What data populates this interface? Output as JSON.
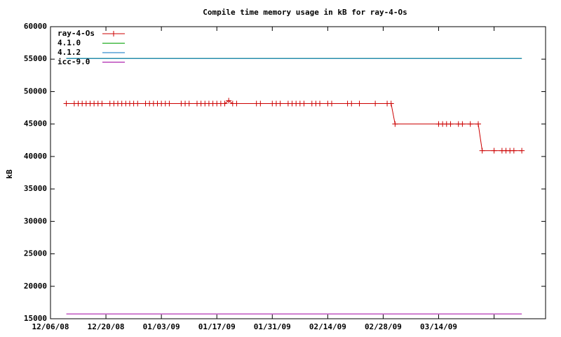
{
  "chart_data": {
    "type": "line",
    "title": "Compile time memory usage in kB for ray-4-Os",
    "ylabel": "kB",
    "xlim": [
      "12/06/08",
      "04/10/09"
    ],
    "xticks": [
      "12/06/08",
      "12/20/08",
      "01/03/09",
      "01/17/09",
      "01/31/09",
      "02/14/09",
      "02/28/09",
      "03/14/09",
      {
        "value": "03/28/09",
        "label": null
      }
    ],
    "ylim": [
      15000,
      60000
    ],
    "yticks": [
      15000,
      20000,
      25000,
      30000,
      35000,
      40000,
      45000,
      50000,
      55000,
      60000
    ],
    "grid": false,
    "legend": "top-left",
    "series": [
      {
        "name": "ray-4-Os",
        "color": "#cc0000",
        "marker": "+",
        "x": [
          "12/10/08",
          "12/12/08",
          "12/13/08",
          "12/14/08",
          "12/15/08",
          "12/16/08",
          "12/17/08",
          "12/18/08",
          "12/19/08",
          "12/21/08",
          "12/22/08",
          "12/23/08",
          "12/24/08",
          "12/25/08",
          "12/26/08",
          "12/27/08",
          "12/28/08",
          "12/30/08",
          "12/31/08",
          "01/01/09",
          "01/02/09",
          "01/03/09",
          "01/04/09",
          "01/05/09",
          "01/08/09",
          "01/09/09",
          "01/10/09",
          "01/12/09",
          "01/13/09",
          "01/14/09",
          "01/15/09",
          "01/16/09",
          "01/17/09",
          "01/18/09",
          "01/19/09",
          "01/20/09",
          "01/21/09",
          "01/22/09",
          "01/27/09",
          "01/28/09",
          "01/31/09",
          "02/01/09",
          "02/02/09",
          "02/04/09",
          "02/05/09",
          "02/06/09",
          "02/07/09",
          "02/08/09",
          "02/10/09",
          "02/11/09",
          "02/12/09",
          "02/14/09",
          "02/15/09",
          "02/19/09",
          "02/20/09",
          "02/22/09",
          "02/26/09",
          "03/01/09",
          "03/02/09",
          "03/03/09",
          "03/14/09",
          "03/15/09",
          "03/16/09",
          "03/17/09",
          "03/19/09",
          "03/20/09",
          "03/22/09",
          "03/24/09",
          "03/25/09",
          "03/28/09",
          "03/30/09",
          "03/31/09",
          "04/01/09",
          "04/02/09",
          "04/04/09"
        ],
        "values": [
          48150,
          48150,
          48150,
          48150,
          48150,
          48150,
          48150,
          48150,
          48150,
          48150,
          48150,
          48150,
          48150,
          48150,
          48150,
          48150,
          48150,
          48150,
          48150,
          48150,
          48150,
          48150,
          48150,
          48150,
          48150,
          48150,
          48150,
          48150,
          48150,
          48150,
          48150,
          48150,
          48150,
          48150,
          48150,
          48600,
          48150,
          48150,
          48150,
          48150,
          48150,
          48150,
          48150,
          48150,
          48150,
          48150,
          48150,
          48150,
          48150,
          48150,
          48150,
          48150,
          48150,
          48150,
          48150,
          48150,
          48150,
          48150,
          48150,
          45000,
          45000,
          45000,
          45000,
          45000,
          45000,
          45000,
          45000,
          45000,
          40900,
          40900,
          40900,
          40900,
          40900,
          40900,
          40900
        ]
      },
      {
        "name": "4.1.0",
        "color": "#00a000",
        "x": [
          "12/10/08",
          "04/04/09"
        ],
        "values": [
          55100,
          55100
        ]
      },
      {
        "name": "4.1.2",
        "color": "#0070c0",
        "x": [
          "12/10/08",
          "04/04/09"
        ],
        "values": [
          55100,
          55100
        ]
      },
      {
        "name": "icc-9.0",
        "color": "#a000a0",
        "x": [
          "12/10/08",
          "04/04/09"
        ],
        "values": [
          15750,
          15750
        ]
      }
    ]
  }
}
